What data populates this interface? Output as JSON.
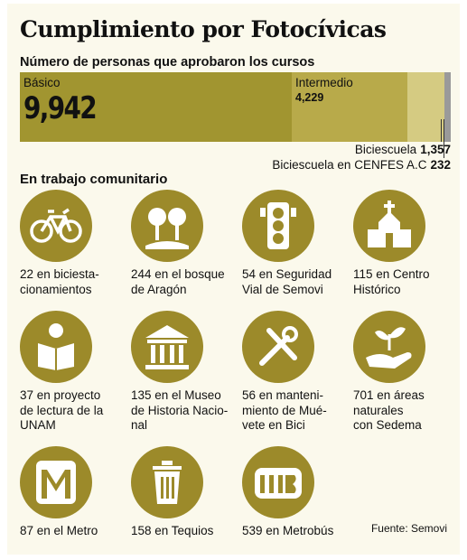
{
  "title": "Cumplimiento por Fotocívicas",
  "subtitle": "Número de personas que aprobaron los cursos",
  "chart_data": {
    "type": "bar",
    "orientation": "horizontal-stacked",
    "categories": [
      "Básico",
      "Intermedio",
      "Biciescuela",
      "Biciescuela en CENFES A.C"
    ],
    "values": [
      9942,
      4229,
      1357,
      232
    ],
    "value_labels": [
      "9,942",
      "4,229",
      "1,357",
      "232"
    ],
    "colors": [
      "#a19530",
      "#b8aa4a",
      "#d5cb82",
      "#9a9a9a"
    ]
  },
  "community": {
    "title": "En trabajo comunitario",
    "items": [
      {
        "icon": "bicycle-icon",
        "caption": "22 en biciesta-\ncionamientos"
      },
      {
        "icon": "trees-icon",
        "caption": "244 en el bosque\nde Aragón"
      },
      {
        "icon": "traffic-light-icon",
        "caption": "54 en Seguridad\nVial de Semovi"
      },
      {
        "icon": "church-icon",
        "caption": "115 en Centro\nHistórico"
      },
      {
        "icon": "reading-person-icon",
        "caption": "37 en proyecto\nde lectura de la\nUNAM"
      },
      {
        "icon": "museum-icon",
        "caption": "135 en el Museo\nde Historia Nacio-\nnal"
      },
      {
        "icon": "tools-icon",
        "caption": "56 en manteni-\nmiento de Mué-\nvete en Bici"
      },
      {
        "icon": "plant-in-hand-icon",
        "caption": "701 en áreas\nnaturales\ncon Sedema"
      },
      {
        "icon": "metro-logo-icon",
        "caption": "87 en el Metro"
      },
      {
        "icon": "trash-can-icon",
        "caption": "158 en Tequios"
      },
      {
        "icon": "metrobus-logo-icon",
        "caption": "539 en Metrobús"
      }
    ]
  },
  "source": "Fuente: Semovi",
  "colors": {
    "accent": "#9c8a2a",
    "background": "#fbf9ec"
  }
}
